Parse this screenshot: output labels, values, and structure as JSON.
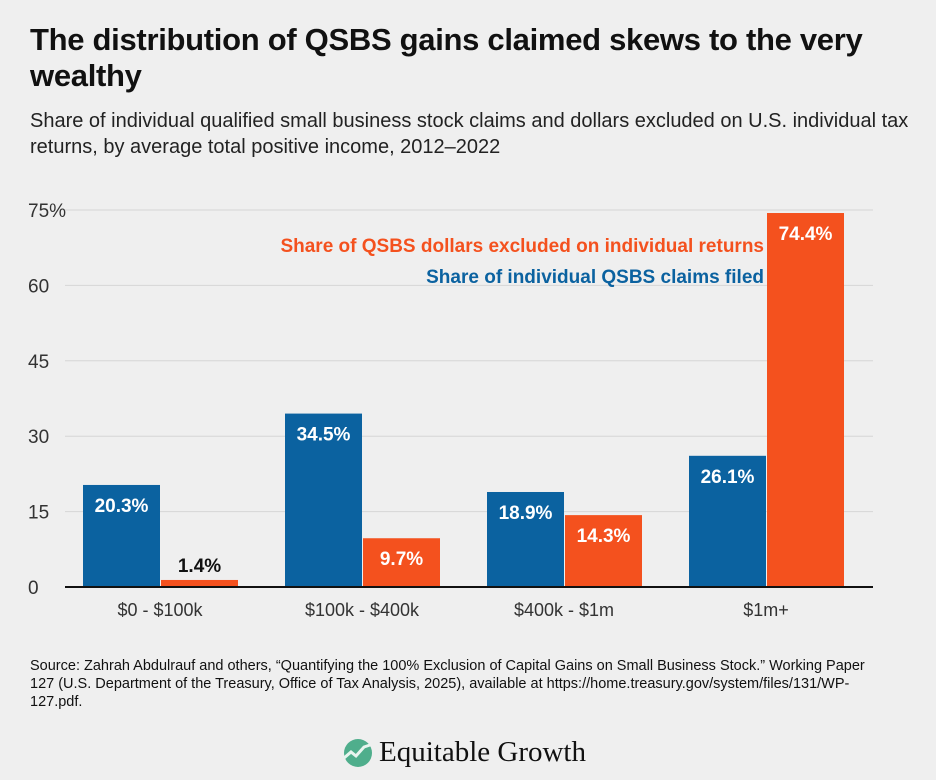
{
  "title": "The distribution of QSBS gains claimed skews to the very wealthy",
  "subtitle": "Share of individual qualified small business stock claims and dollars excluded on U.S. individual tax returns, by average total positive income, 2012–2022",
  "chart_data": {
    "type": "bar",
    "categories": [
      "$0 - $100k",
      "$100k - $400k",
      "$400k - $1m",
      "$1m+"
    ],
    "series": [
      {
        "name": "Share of individual QSBS claims filed",
        "values": [
          20.3,
          34.5,
          18.9,
          26.1
        ],
        "labels": [
          "20.3%",
          "34.5%",
          "18.9%",
          "26.1%"
        ],
        "color": "#0b62a0"
      },
      {
        "name": "Share of QSBS dollars excluded on individual returns",
        "values": [
          1.4,
          9.7,
          14.3,
          74.4
        ],
        "labels": [
          "1.4%",
          "9.7%",
          "14.3%",
          "74.4%"
        ],
        "color": "#f4511e"
      }
    ],
    "ylim": [
      0,
      75
    ],
    "yticks": [
      0,
      15,
      30,
      45,
      60,
      75
    ],
    "ytick_labels": [
      "0",
      "15",
      "30",
      "45",
      "60",
      "75%"
    ],
    "grid": true,
    "legend_placement": "top-right"
  },
  "source": "Source: Zahrah Abdulrauf and others, “Quantifying the 100% Exclusion of Capital Gains on Small Business Stock.” Working Paper 127 (U.S. Department of the Treasury, Office of Tax Analysis, 2025), available at https://home.treasury.gov/system/files/131/WP-127.pdf.",
  "logo": {
    "text": "Equitable Growth",
    "icon": "rising-line-circle-icon",
    "color": "#4fae8c"
  }
}
